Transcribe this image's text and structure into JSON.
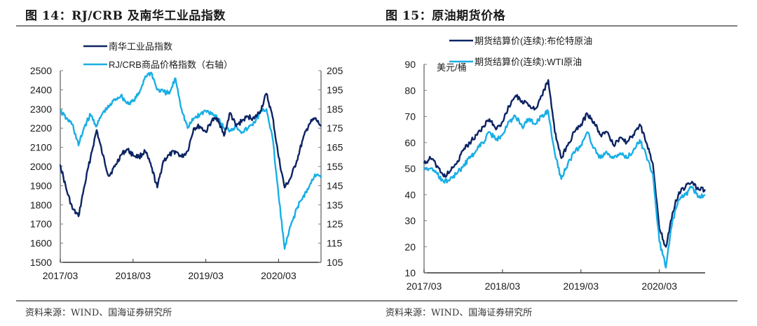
{
  "figures": [
    {
      "title": "图 14：RJ/CRB 及南华工业品指数",
      "source": "资料来源：WIND、国海证券研究所"
    },
    {
      "title": "图 15：原油期货价格",
      "source": "资料来源：WIND、国海证券研究所"
    }
  ],
  "colors": {
    "dark_navy": "#0d2463",
    "light_blue": "#19aee6",
    "axis": "#7f7f7f"
  },
  "chart_data": [
    {
      "type": "line",
      "title": "RJ/CRB 及南华工业品指数",
      "xlabel": "",
      "ylabel": "",
      "x_ticks": [
        "2017/03",
        "2018/03",
        "2019/03",
        "2020/03"
      ],
      "x_range": [
        "2017/03",
        "2020/10"
      ],
      "y_left": {
        "range": [
          1500,
          2500
        ],
        "ticks": [
          1500,
          1600,
          1700,
          1800,
          1900,
          2000,
          2100,
          2200,
          2300,
          2400,
          2500
        ]
      },
      "y_right": {
        "range": [
          105,
          205
        ],
        "ticks": [
          105,
          115,
          125,
          135,
          145,
          155,
          165,
          175,
          185,
          195,
          205
        ]
      },
      "legend": {
        "position": "top-center",
        "entries": [
          "南华工业品指数",
          "RJ/CRB商品价格指数（右轴）"
        ]
      },
      "grid": false,
      "x": [
        "2017/03",
        "2017/04",
        "2017/05",
        "2017/06",
        "2017/07",
        "2017/08",
        "2017/09",
        "2017/10",
        "2017/11",
        "2017/12",
        "2018/01",
        "2018/02",
        "2018/03",
        "2018/04",
        "2018/05",
        "2018/06",
        "2018/07",
        "2018/08",
        "2018/09",
        "2018/10",
        "2018/11",
        "2018/12",
        "2019/01",
        "2019/02",
        "2019/03",
        "2019/04",
        "2019/05",
        "2019/06",
        "2019/07",
        "2019/08",
        "2019/09",
        "2019/10",
        "2019/11",
        "2019/12",
        "2020/01",
        "2020/02",
        "2020/03",
        "2020/04",
        "2020/05",
        "2020/06",
        "2020/07",
        "2020/08",
        "2020/09",
        "2020/10"
      ],
      "series": [
        {
          "name": "南华工业品指数",
          "axis": "left",
          "color": "#0d2463",
          "values": [
            2010,
            1880,
            1780,
            1740,
            1900,
            2050,
            2190,
            2060,
            1950,
            2000,
            2060,
            2090,
            2060,
            2050,
            2080,
            2000,
            1890,
            2030,
            2060,
            2080,
            2050,
            2080,
            2200,
            2210,
            2180,
            2240,
            2250,
            2160,
            2280,
            2210,
            2240,
            2260,
            2250,
            2290,
            2380,
            2260,
            2050,
            1890,
            1940,
            2030,
            2140,
            2220,
            2250,
            2210
          ]
        },
        {
          "name": "RJ/CRB商品价格指数（右轴）",
          "axis": "right",
          "color": "#19aee6",
          "values": [
            184,
            180,
            177,
            166,
            176,
            182,
            176,
            183,
            186,
            190,
            192,
            188,
            189,
            193,
            202,
            204,
            195,
            194,
            193,
            201,
            185,
            175,
            180,
            182,
            184,
            183,
            180,
            175,
            174,
            176,
            173,
            175,
            178,
            183,
            185,
            170,
            140,
            112,
            124,
            133,
            139,
            144,
            151,
            149
          ]
        }
      ]
    },
    {
      "type": "line",
      "title": "原油期货价格",
      "xlabel": "",
      "ylabel": "美元/桶",
      "x_ticks": [
        "2017/03",
        "2018/03",
        "2019/03",
        "2020/03"
      ],
      "x_range": [
        "2017/03",
        "2020/10"
      ],
      "y_left": {
        "range": [
          10,
          90
        ],
        "ticks": [
          10,
          20,
          30,
          40,
          50,
          60,
          70,
          80,
          90
        ]
      },
      "legend": {
        "position": "top-center",
        "entries": [
          "期货结算价(连续):布伦特原油",
          "期货结算价(连续):WTI原油"
        ]
      },
      "grid": false,
      "x": [
        "2017/03",
        "2017/04",
        "2017/05",
        "2017/06",
        "2017/07",
        "2017/08",
        "2017/09",
        "2017/10",
        "2017/11",
        "2017/12",
        "2018/01",
        "2018/02",
        "2018/03",
        "2018/04",
        "2018/05",
        "2018/06",
        "2018/07",
        "2018/08",
        "2018/09",
        "2018/10",
        "2018/11",
        "2018/12",
        "2019/01",
        "2019/02",
        "2019/03",
        "2019/04",
        "2019/05",
        "2019/06",
        "2019/07",
        "2019/08",
        "2019/09",
        "2019/10",
        "2019/11",
        "2019/12",
        "2020/01",
        "2020/02",
        "2020/03",
        "2020/04",
        "2020/05",
        "2020/06",
        "2020/07",
        "2020/08",
        "2020/09",
        "2020/10"
      ],
      "series": [
        {
          "name": "期货结算价(连续):布伦特原油",
          "axis": "left",
          "color": "#0d2463",
          "values": [
            52,
            54,
            51,
            47,
            49,
            52,
            57,
            60,
            63,
            66,
            69,
            65,
            68,
            74,
            78,
            76,
            74,
            73,
            78,
            84,
            64,
            54,
            59,
            64,
            67,
            71,
            68,
            63,
            64,
            59,
            62,
            60,
            63,
            67,
            60,
            52,
            27,
            20,
            33,
            41,
            43,
            45,
            42,
            42
          ]
        },
        {
          "name": "期货结算价(连续):WTI原油",
          "axis": "left",
          "color": "#19aee6",
          "values": [
            50,
            50,
            48,
            45,
            46,
            48,
            51,
            54,
            57,
            60,
            64,
            61,
            63,
            68,
            70,
            66,
            69,
            67,
            70,
            72,
            56,
            46,
            52,
            56,
            59,
            64,
            58,
            54,
            56,
            54,
            56,
            54,
            57,
            61,
            55,
            48,
            22,
            12,
            30,
            38,
            40,
            43,
            39,
            40
          ]
        }
      ]
    }
  ]
}
